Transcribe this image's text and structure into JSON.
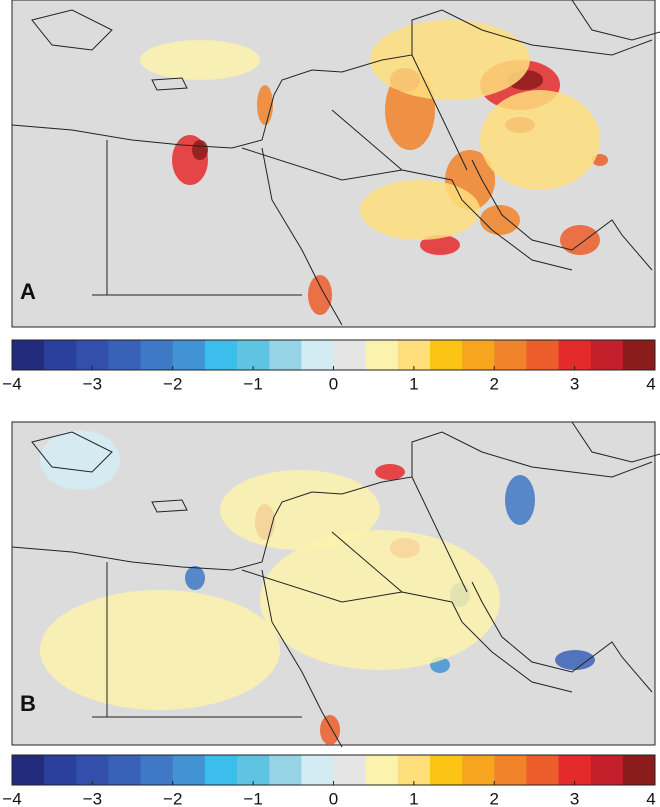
{
  "panels": [
    {
      "label": "A"
    },
    {
      "label": "B"
    }
  ],
  "colorbar": {
    "range": [
      -4,
      4
    ],
    "colors": [
      "#232c7c",
      "#2b3f9c",
      "#3250ab",
      "#3a61b8",
      "#3f78c4",
      "#4293d3",
      "#3cbeec",
      "#5fc4e2",
      "#96d3e4",
      "#d3ecf4",
      "#e5e5e5",
      "#fbf2ad",
      "#fedf7c",
      "#fcc513",
      "#f7a51f",
      "#f1842a",
      "#ec5d2b",
      "#e52a2c",
      "#c51f2c",
      "#8c1b1c"
    ],
    "ticks": [
      {
        "value": -4,
        "label": "−4"
      },
      {
        "value": -3,
        "label": "−3"
      },
      {
        "value": -2,
        "label": "−2"
      },
      {
        "value": -1,
        "label": "−1"
      },
      0,
      1,
      2,
      3,
      4
    ]
  }
}
